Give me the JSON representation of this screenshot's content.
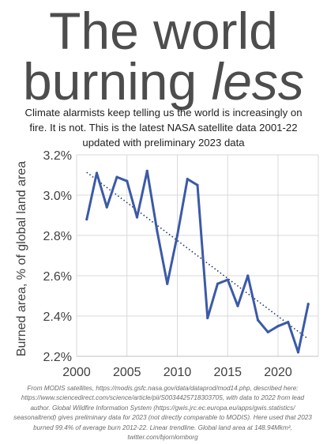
{
  "headline": {
    "line1": "The world",
    "line2_prefix": "burning ",
    "line2_emphasis": "less"
  },
  "subtitle": {
    "line1": "Climate alarmists keep telling us the world is increasingly on",
    "line2": "fire. It is not. This is the latest NASA satellite data 2001-22",
    "line3": "updated with preliminary 2023 data"
  },
  "footnote": {
    "line1": "From MODIS satellites, https://modis.gsfc.nasa.gov/data/dataprod/mod14.php, described here:",
    "line2": "https://www.sciencedirect.com/science/article/pii/S0034425718303705, with data to 2022 from lead",
    "line3": "author. Global Wildfire Information System (https://gwis.jrc.ec.europa.eu/apps/gwis.statistics/",
    "line4": "seasonaltrend) gives preliminary data for 2023 (not directly comparable to MODIS). Here used that 2023",
    "line5": "burned 99.4% of average burn 2012-22. Linear trendline. Global land area at 148.94Mkm²,",
    "line6": "twitter.com/bjornlomborg"
  },
  "chart_data": {
    "type": "line",
    "title": "",
    "xlabel": "",
    "ylabel": "Burned area, % of global land area",
    "xlim": [
      2000,
      2024
    ],
    "ylim": [
      2.2,
      3.2
    ],
    "x_ticks": [
      2000,
      2005,
      2010,
      2015,
      2020
    ],
    "x_tick_labels": [
      "2000",
      "2005",
      "2010",
      "2015",
      "2020"
    ],
    "y_ticks": [
      2.2,
      2.4,
      2.6,
      2.8,
      3.0,
      3.2
    ],
    "y_tick_labels": [
      "2.2%",
      "2.4%",
      "2.6%",
      "2.8%",
      "3.0%",
      "3.2%"
    ],
    "grid": true,
    "x": [
      2001,
      2002,
      2003,
      2004,
      2005,
      2006,
      2007,
      2008,
      2009,
      2010,
      2011,
      2012,
      2013,
      2014,
      2015,
      2016,
      2017,
      2018,
      2019,
      2020,
      2021,
      2022,
      2023
    ],
    "series": [
      {
        "values": [
          2.88,
          3.11,
          2.94,
          3.09,
          3.07,
          2.89,
          3.12,
          2.82,
          2.56,
          2.8,
          3.08,
          3.05,
          2.39,
          2.56,
          2.58,
          2.45,
          2.6,
          2.38,
          2.32,
          2.35,
          2.37,
          2.22,
          2.46
        ],
        "color": "#3b5aa7"
      }
    ],
    "trendline": {
      "type": "linear",
      "style": "dotted",
      "color": "#1f3864"
    }
  }
}
